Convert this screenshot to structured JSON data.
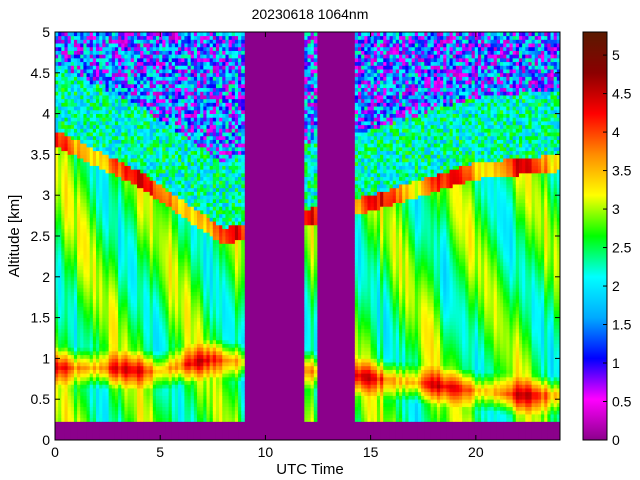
{
  "chart_data": {
    "type": "heatmap",
    "title": "20230618 1064nm",
    "xlabel": "UTC Time",
    "ylabel": "Altitude [km]",
    "xlim": [
      0,
      24
    ],
    "ylim": [
      0,
      5
    ],
    "x_ticks": [
      0,
      5,
      10,
      15,
      20
    ],
    "x_tick_labels": [
      "0",
      "5",
      "10",
      "15",
      "20"
    ],
    "y_ticks": [
      0,
      0.5,
      1,
      1.5,
      2,
      2.5,
      3,
      3.5,
      4,
      4.5,
      5
    ],
    "y_tick_labels": [
      "0",
      "0.5",
      "1",
      "1.5",
      "2",
      "2.5",
      "3",
      "3.5",
      "4",
      "4.5",
      "5"
    ],
    "colorbar": {
      "range": [
        0,
        5.3
      ],
      "ticks": [
        0,
        0.5,
        1,
        1.5,
        2,
        2.5,
        3,
        3.5,
        4,
        4.5,
        5
      ],
      "tick_labels": [
        "0",
        "0.5",
        "1",
        "1.5",
        "2",
        "2.5",
        "3",
        "3.5",
        "4",
        "4.5",
        "5"
      ],
      "colormap": [
        "#8b008b",
        "#ff00ff",
        "#0000ff",
        "#00aaff",
        "#00ffff",
        "#00ff00",
        "#ffff00",
        "#ff8c00",
        "#ff0000",
        "#8b0000",
        "#5a1a00"
      ]
    },
    "no_data_intervals": [
      [
        9,
        11.8
      ],
      [
        12.4,
        14.2
      ]
    ],
    "background_value": 0,
    "grid": false,
    "features": {
      "surface_layer_top_km": 0.25,
      "boundary_layer_top_km": [
        [
          0,
          3.8
        ],
        [
          4,
          3.3
        ],
        [
          8,
          2.6
        ],
        [
          15,
          3.0
        ],
        [
          20,
          3.4
        ],
        [
          24,
          3.5
        ]
      ],
      "high_intensity_layer_km": [
        [
          0,
          0.9
        ],
        [
          5,
          0.85
        ],
        [
          7.5,
          1.0
        ],
        [
          22,
          0.55
        ]
      ]
    }
  }
}
